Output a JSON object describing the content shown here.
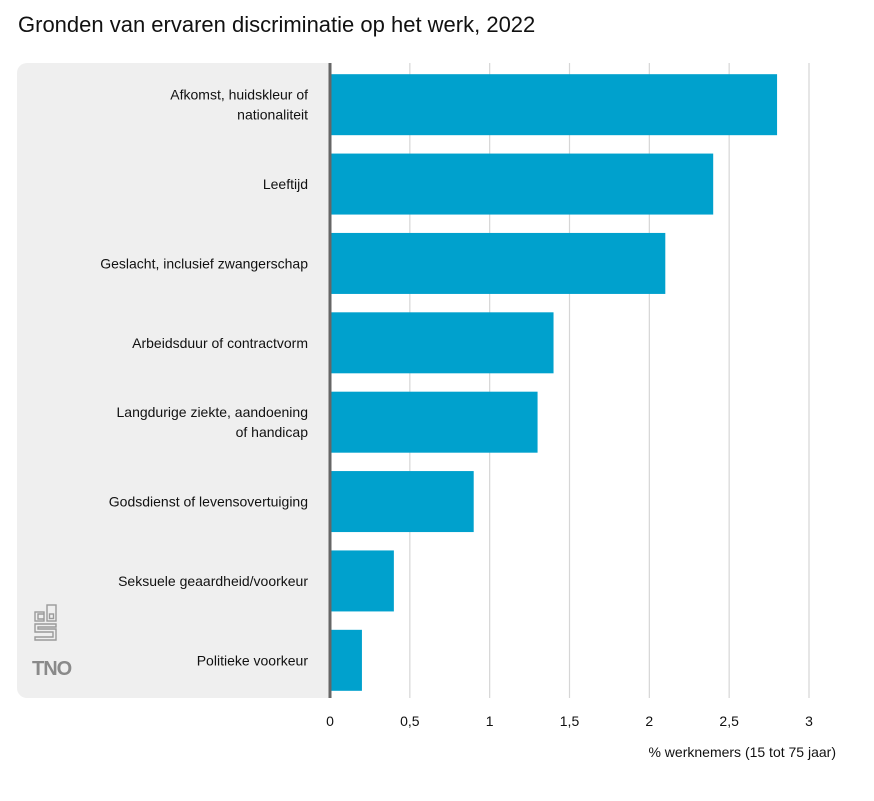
{
  "chart_data": {
    "type": "bar",
    "orientation": "horizontal",
    "title": "Gronden van ervaren discriminatie op het werk, 2022",
    "categories": [
      [
        "Afkomst, huidskleur of",
        "nationaliteit"
      ],
      [
        "Leeftijd"
      ],
      [
        "Geslacht, inclusief zwangerschap"
      ],
      [
        "Arbeidsduur of contractvorm"
      ],
      [
        "Langdurige ziekte, aandoening",
        "of handicap"
      ],
      [
        "Godsdienst of levensovertuiging"
      ],
      [
        "Seksuele geaardheid/voorkeur"
      ],
      [
        "Politieke voorkeur"
      ]
    ],
    "values": [
      2.8,
      2.4,
      2.1,
      1.4,
      1.3,
      0.9,
      0.4,
      0.2
    ],
    "xlim": [
      0,
      3
    ],
    "xticks": [
      0,
      0.5,
      1,
      1.5,
      2,
      2.5,
      3
    ],
    "xtick_labels": [
      "0",
      "0,5",
      "1",
      "1,5",
      "2",
      "2,5",
      "3"
    ],
    "xlabel": "% werknemers (15 tot 75 jaar)",
    "ylabel": "",
    "grid": true,
    "bar_color": "#00a1cd",
    "grid_color": "#d6d6d6",
    "axis_color": "#666666"
  },
  "logos": {
    "cbs": "cbs-logo",
    "tno": "TNO"
  }
}
